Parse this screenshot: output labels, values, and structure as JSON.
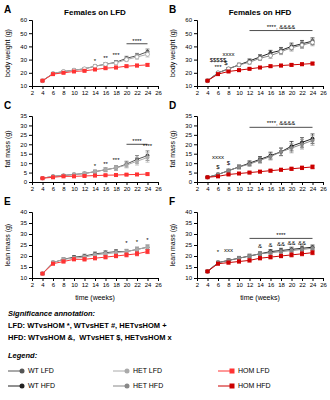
{
  "chart_data": [
    {
      "type": "line",
      "title": "Females on LFD",
      "ylabel": "body weight (g)",
      "x": [
        4,
        6,
        8,
        10,
        12,
        14,
        16,
        18,
        20,
        22,
        24
      ],
      "xlim": [
        2,
        26
      ],
      "xticks": [
        2,
        4,
        6,
        8,
        10,
        12,
        14,
        16,
        18,
        20,
        22,
        24,
        26
      ],
      "ylim": [
        10,
        60
      ],
      "yticks": [
        10,
        20,
        30,
        40,
        50,
        60
      ],
      "grid": false,
      "series": [
        {
          "name": "WT LFD",
          "color": "#555555",
          "marker": "circle",
          "values": [
            14,
            19.5,
            21,
            22,
            23,
            25,
            26.5,
            28,
            31,
            33,
            36
          ],
          "errors": [
            0.5,
            0.7,
            0.8,
            0.9,
            1.0,
            1.1,
            1.2,
            1.3,
            1.5,
            1.7,
            2.0
          ]
        },
        {
          "name": "HET LFD",
          "color": "#aaaaaa",
          "marker": "open-circle",
          "values": [
            14,
            19.5,
            21,
            22,
            23,
            25,
            26.5,
            27.5,
            30,
            32,
            34
          ],
          "errors": [
            0.5,
            0.7,
            0.8,
            0.9,
            1.0,
            1.1,
            1.2,
            1.3,
            1.5,
            1.7,
            2.0
          ]
        },
        {
          "name": "HOM LFD",
          "color": "#ff3333",
          "marker": "square",
          "values": [
            14,
            19,
            20,
            21,
            21.5,
            22.5,
            23.5,
            24,
            25,
            25.5,
            26
          ],
          "errors": [
            0.4,
            0.5,
            0.6,
            0.6,
            0.7,
            0.7,
            0.8,
            0.9,
            0.9,
            1.0,
            1.0
          ]
        }
      ],
      "annotations": [
        {
          "text": "A"
        },
        {
          "text": "****",
          "x": 22,
          "y": 42.5,
          "bracket_x": [
            20,
            24
          ],
          "bracket_y": 42
        },
        {
          "text": "*",
          "x": 14,
          "y": 27.5
        },
        {
          "text": "**",
          "x": 16,
          "y": 29.5
        },
        {
          "text": "***",
          "x": 18,
          "y": 32
        }
      ]
    },
    {
      "type": "line",
      "title": "Females on HFD",
      "ylabel": "body weight (g)",
      "x": [
        4,
        6,
        8,
        10,
        12,
        14,
        16,
        18,
        20,
        22,
        24
      ],
      "xlim": [
        2,
        26
      ],
      "xticks": [
        2,
        4,
        6,
        8,
        10,
        12,
        14,
        16,
        18,
        20,
        22,
        24,
        26
      ],
      "ylim": [
        10,
        60
      ],
      "yticks": [
        10,
        20,
        30,
        40,
        50,
        60
      ],
      "grid": false,
      "series": [
        {
          "name": "WT HFD",
          "color": "#222222",
          "marker": "circle",
          "values": [
            14,
            20,
            23,
            26,
            29,
            32,
            35,
            37,
            40,
            42,
            44
          ],
          "errors": [
            0.5,
            0.8,
            1.0,
            1.2,
            1.5,
            1.7,
            2.0,
            2.2,
            2.5,
            2.5,
            2.5
          ]
        },
        {
          "name": "HET HFD",
          "color": "#888888",
          "marker": "open-circle",
          "values": [
            14,
            20,
            23,
            26,
            28,
            31,
            33,
            36,
            39,
            41,
            43
          ],
          "errors": [
            0.5,
            0.8,
            1.0,
            1.2,
            1.5,
            1.7,
            2.0,
            2.2,
            2.5,
            2.5,
            2.5
          ]
        },
        {
          "name": "HOM HFD",
          "color": "#cc0000",
          "marker": "square",
          "values": [
            14,
            19,
            21,
            22,
            23,
            24,
            25,
            25.5,
            26,
            26.5,
            27
          ],
          "errors": [
            0.4,
            0.5,
            0.6,
            0.7,
            0.7,
            0.8,
            0.9,
            0.9,
            1.0,
            1.0,
            1.0
          ]
        }
      ],
      "annotations": [
        {
          "text": "B"
        },
        {
          "text": "****, &&&&",
          "x": 18,
          "y": 53,
          "bracket_x": [
            12,
            24
          ],
          "bracket_y": 52
        },
        {
          "text": "$$$$$",
          "x": 6,
          "y": 28
        },
        {
          "text": "xxxx",
          "x": 8,
          "y": 33
        },
        {
          "text": "***",
          "x": 6,
          "y": 23
        },
        {
          "text": "$",
          "x": 7.5,
          "y": 26
        }
      ]
    },
    {
      "type": "line",
      "ylabel": "fat mass (g)",
      "x": [
        4,
        6,
        8,
        10,
        12,
        14,
        16,
        18,
        20,
        22,
        24
      ],
      "xlim": [
        2,
        26
      ],
      "xticks": [
        2,
        4,
        6,
        8,
        10,
        12,
        14,
        16,
        18,
        20,
        22,
        24,
        26
      ],
      "ylim": [
        0,
        35
      ],
      "yticks": [
        0,
        5,
        10,
        15,
        20,
        25,
        30,
        35
      ],
      "grid": false,
      "series": [
        {
          "name": "WT LFD",
          "color": "#555555",
          "marker": "circle",
          "values": [
            2,
            3,
            3.5,
            4,
            4.5,
            5.5,
            6.5,
            7.5,
            9.5,
            12,
            14
          ],
          "errors": [
            0.3,
            0.4,
            0.5,
            0.6,
            0.7,
            0.8,
            1.0,
            1.2,
            1.5,
            2.0,
            2.5
          ]
        },
        {
          "name": "HET LFD",
          "color": "#aaaaaa",
          "marker": "circle",
          "values": [
            2,
            3,
            3.5,
            4,
            4.5,
            5.5,
            6.5,
            7.5,
            9,
            11,
            13
          ],
          "errors": [
            0.3,
            0.4,
            0.5,
            0.6,
            0.7,
            0.8,
            1.0,
            1.2,
            1.5,
            2.0,
            2.5
          ]
        },
        {
          "name": "HOM LFD",
          "color": "#ff3333",
          "marker": "square",
          "values": [
            2,
            2.5,
            3,
            3,
            3.2,
            3.4,
            3.6,
            3.7,
            3.9,
            4.0,
            4.2
          ],
          "errors": [
            0.2,
            0.3,
            0.3,
            0.3,
            0.4,
            0.4,
            0.4,
            0.4,
            0.5,
            0.5,
            0.5
          ]
        }
      ],
      "annotations": [
        {
          "text": "C"
        },
        {
          "text": "****",
          "x": 22,
          "y": 20.5,
          "bracket_x": [
            20,
            24
          ],
          "bracket_y": 20
        },
        {
          "text": "****",
          "x": 24,
          "y": 18
        },
        {
          "text": "*",
          "x": 14,
          "y": 7.5
        },
        {
          "text": "**",
          "x": 16,
          "y": 8.5
        },
        {
          "text": "***",
          "x": 18,
          "y": 10.5
        }
      ]
    },
    {
      "type": "line",
      "ylabel": "fat mass (g)",
      "x": [
        4,
        6,
        8,
        10,
        12,
        14,
        16,
        18,
        20,
        22,
        24
      ],
      "xlim": [
        2,
        26
      ],
      "xticks": [
        2,
        4,
        6,
        8,
        10,
        12,
        14,
        16,
        18,
        20,
        22,
        24,
        26
      ],
      "ylim": [
        0,
        35
      ],
      "yticks": [
        0,
        5,
        10,
        15,
        20,
        25,
        30,
        35
      ],
      "grid": false,
      "series": [
        {
          "name": "WT HFD",
          "color": "#222222",
          "marker": "circle",
          "values": [
            2.5,
            4,
            6,
            8,
            10,
            12,
            14,
            16,
            19,
            21,
            23
          ],
          "errors": [
            0.4,
            0.6,
            0.8,
            1.0,
            1.2,
            1.5,
            1.8,
            2.0,
            2.5,
            2.5,
            2.5
          ]
        },
        {
          "name": "HET HFD",
          "color": "#888888",
          "marker": "circle",
          "values": [
            2.5,
            4,
            6,
            8,
            9.5,
            11.5,
            13.5,
            16,
            18,
            20,
            22
          ],
          "errors": [
            0.4,
            0.6,
            0.8,
            1.0,
            1.2,
            1.5,
            1.8,
            2.0,
            2.5,
            2.5,
            2.5
          ]
        },
        {
          "name": "HOM HFD",
          "color": "#cc0000",
          "marker": "square",
          "values": [
            2.5,
            3,
            4,
            4.5,
            5,
            5.5,
            6,
            6.5,
            7,
            7.5,
            8
          ],
          "errors": [
            0.3,
            0.4,
            0.5,
            0.5,
            0.6,
            0.6,
            0.7,
            0.7,
            0.8,
            0.9,
            1.0
          ]
        }
      ],
      "annotations": [
        {
          "text": "D"
        },
        {
          "text": "****, &&&&",
          "x": 18,
          "y": 30,
          "bracket_x": [
            12,
            24
          ],
          "bracket_y": 29
        },
        {
          "text": "xxxx",
          "x": 6,
          "y": 12
        },
        {
          "text": "$",
          "x": 6,
          "y": 7
        },
        {
          "text": "$",
          "x": 8,
          "y": 9
        }
      ]
    },
    {
      "type": "line",
      "ylabel": "lean mass (g)",
      "xlabel": "time (weeks)",
      "x": [
        4,
        6,
        8,
        10,
        12,
        14,
        16,
        18,
        20,
        22,
        24
      ],
      "xlim": [
        2,
        26
      ],
      "xticks": [
        2,
        4,
        6,
        8,
        10,
        12,
        14,
        16,
        18,
        20,
        22,
        24,
        26
      ],
      "ylim": [
        10,
        40
      ],
      "yticks": [
        10,
        15,
        20,
        25,
        30,
        35,
        40
      ],
      "grid": false,
      "series": [
        {
          "name": "WT LFD",
          "color": "#555555",
          "marker": "circle",
          "values": [
            12,
            17,
            18.5,
            19.5,
            20,
            21,
            21.5,
            22,
            22,
            23,
            24
          ],
          "errors": [
            0.5,
            0.6,
            0.7,
            0.7,
            0.8,
            0.8,
            0.9,
            0.9,
            1.0,
            1.0,
            1.0
          ]
        },
        {
          "name": "HET LFD",
          "color": "#aaaaaa",
          "marker": "circle",
          "values": [
            12,
            17,
            18.5,
            19,
            19.5,
            20.5,
            21,
            21.5,
            22,
            23,
            24
          ],
          "errors": [
            0.5,
            0.6,
            0.7,
            0.7,
            0.8,
            0.8,
            0.9,
            0.9,
            1.0,
            1.0,
            1.0
          ]
        },
        {
          "name": "HOM LFD",
          "color": "#ff3333",
          "marker": "square",
          "values": [
            12,
            16.5,
            17.5,
            18.5,
            18.5,
            19,
            19.5,
            20,
            20.5,
            21,
            22
          ],
          "errors": [
            0.4,
            0.5,
            0.6,
            0.6,
            0.7,
            0.7,
            0.8,
            0.8,
            0.9,
            0.9,
            0.9
          ]
        }
      ],
      "annotations": [
        {
          "text": "E"
        },
        {
          "text": "*",
          "x": 20,
          "y": 25
        },
        {
          "text": "*",
          "x": 22,
          "y": 25.5
        },
        {
          "text": "*",
          "x": 24,
          "y": 26.5
        }
      ]
    },
    {
      "type": "line",
      "ylabel": "lean mass (g)",
      "xlabel": "time (weeks)",
      "x": [
        4,
        6,
        8,
        10,
        12,
        14,
        16,
        18,
        20,
        22,
        24
      ],
      "xlim": [
        2,
        26
      ],
      "xticks": [
        2,
        4,
        6,
        8,
        10,
        12,
        14,
        16,
        18,
        20,
        22,
        24,
        26
      ],
      "ylim": [
        10,
        40
      ],
      "yticks": [
        10,
        15,
        20,
        25,
        30,
        35,
        40
      ],
      "grid": false,
      "series": [
        {
          "name": "WT HFD",
          "color": "#222222",
          "marker": "circle",
          "values": [
            13,
            17,
            18,
            19,
            20,
            21,
            22,
            22.5,
            23,
            23.5,
            24
          ],
          "errors": [
            0.5,
            0.6,
            0.7,
            0.8,
            0.8,
            0.9,
            0.9,
            1.0,
            1.0,
            1.0,
            1.0
          ]
        },
        {
          "name": "HET HFD",
          "color": "#888888",
          "marker": "circle",
          "values": [
            13,
            17,
            18,
            19,
            20,
            21,
            21.5,
            22,
            22.5,
            23,
            23.5
          ],
          "errors": [
            0.5,
            0.6,
            0.7,
            0.8,
            0.8,
            0.9,
            0.9,
            1.0,
            1.0,
            1.0,
            1.0
          ]
        },
        {
          "name": "HOM HFD",
          "color": "#cc0000",
          "marker": "square",
          "values": [
            13,
            16.5,
            17,
            17.5,
            18,
            19,
            19.5,
            20,
            20.5,
            21,
            21.5
          ],
          "errors": [
            0.4,
            0.5,
            0.6,
            0.6,
            0.7,
            0.7,
            0.8,
            0.8,
            0.9,
            0.9,
            0.9
          ]
        }
      ],
      "annotations": [
        {
          "text": "F"
        },
        {
          "text": "****",
          "x": 18,
          "y": 28.5,
          "bracket_x": [
            12,
            24
          ],
          "bracket_y": 28
        },
        {
          "text": "*",
          "x": 6,
          "y": 21
        },
        {
          "text": "xxx",
          "x": 8,
          "y": 22
        },
        {
          "text": "&",
          "x": 14,
          "y": 23.5
        },
        {
          "text": "&",
          "x": 16,
          "y": 24
        },
        {
          "text": "&&",
          "x": 18,
          "y": 24.5
        },
        {
          "text": "&&",
          "x": 20,
          "y": 25
        },
        {
          "text": "&&",
          "x": 22,
          "y": 25
        }
      ]
    }
  ],
  "annotations": [
    "Significance annotation:",
    "LFD: WTvsHOM *, WTvsHET #, HETvsHOM +",
    "HFD: WTvsHOM &,  WTvsHET $, HETvsHOM x"
  ],
  "legend": "bottom",
  "legend_title": "Legend:"
}
